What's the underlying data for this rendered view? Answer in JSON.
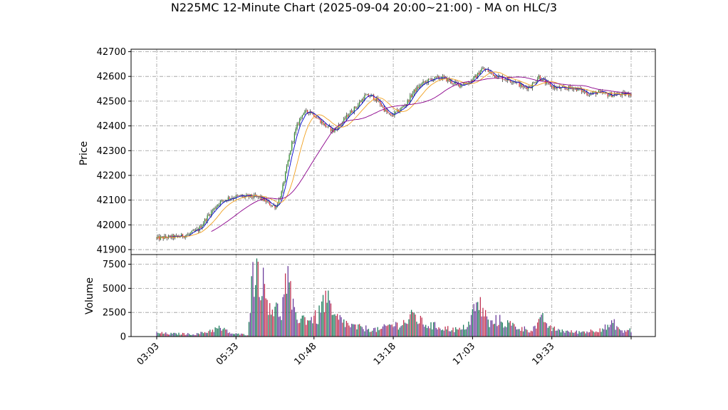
{
  "chart_data": {
    "type": "candlestick",
    "title": "N225MC 12-Minute Chart (2025-09-04 20:00~21:00) - MA on HLC/3",
    "price_panel": {
      "ylabel": "Price",
      "ylim": [
        41880,
        42710
      ],
      "yticks": [
        41900,
        42000,
        42100,
        42200,
        42300,
        42400,
        42500,
        42600,
        42700
      ],
      "grid": true,
      "up_color": "#2e8b2e",
      "down_color": "#e03030",
      "ma_colors": [
        "#0000cc",
        "#f0a020",
        "#8b008b"
      ],
      "price_path": [
        [
          0,
          41945
        ],
        [
          8,
          41950
        ],
        [
          16,
          41952
        ],
        [
          24,
          41960
        ],
        [
          32,
          41980
        ],
        [
          40,
          42040
        ],
        [
          48,
          42090
        ],
        [
          56,
          42110
        ],
        [
          64,
          42115
        ],
        [
          72,
          42115
        ],
        [
          80,
          42110
        ],
        [
          84,
          42095
        ],
        [
          88,
          42080
        ],
        [
          92,
          42075
        ],
        [
          96,
          42130
        ],
        [
          100,
          42230
        ],
        [
          104,
          42330
        ],
        [
          108,
          42400
        ],
        [
          112,
          42450
        ],
        [
          118,
          42460
        ],
        [
          124,
          42430
        ],
        [
          130,
          42400
        ],
        [
          136,
          42380
        ],
        [
          142,
          42410
        ],
        [
          148,
          42450
        ],
        [
          154,
          42480
        ],
        [
          160,
          42520
        ],
        [
          166,
          42520
        ],
        [
          172,
          42490
        ],
        [
          176,
          42460
        ],
        [
          180,
          42440
        ],
        [
          186,
          42460
        ],
        [
          192,
          42490
        ],
        [
          198,
          42540
        ],
        [
          204,
          42570
        ],
        [
          212,
          42590
        ],
        [
          220,
          42595
        ],
        [
          226,
          42580
        ],
        [
          232,
          42565
        ],
        [
          240,
          42575
        ],
        [
          246,
          42600
        ],
        [
          250,
          42630
        ],
        [
          254,
          42625
        ],
        [
          260,
          42605
        ],
        [
          268,
          42590
        ],
        [
          276,
          42580
        ],
        [
          282,
          42555
        ],
        [
          288,
          42560
        ],
        [
          294,
          42600
        ],
        [
          300,
          42570
        ],
        [
          306,
          42555
        ],
        [
          312,
          42550
        ],
        [
          320,
          42555
        ],
        [
          326,
          42545
        ],
        [
          332,
          42530
        ],
        [
          340,
          42535
        ],
        [
          348,
          42525
        ],
        [
          358,
          42528
        ],
        [
          365,
          42530
        ]
      ]
    },
    "volume_panel": {
      "ylabel": "Volume",
      "ylim": [
        0,
        8500
      ],
      "yticks": [
        0,
        2500,
        5000,
        7500
      ],
      "grid": true,
      "bar_colors": [
        "#1a7a5a",
        "#c03050",
        "#6a3a9a"
      ],
      "volume_path": [
        [
          0,
          400
        ],
        [
          10,
          300
        ],
        [
          20,
          300
        ],
        [
          30,
          250
        ],
        [
          38,
          500
        ],
        [
          42,
          700
        ],
        [
          48,
          900
        ],
        [
          54,
          600
        ],
        [
          58,
          300
        ],
        [
          64,
          250
        ],
        [
          70,
          200
        ],
        [
          72,
          4200
        ],
        [
          76,
          8000
        ],
        [
          80,
          6500
        ],
        [
          84,
          4500
        ],
        [
          90,
          3000
        ],
        [
          96,
          2600
        ],
        [
          100,
          6300
        ],
        [
          106,
          2300
        ],
        [
          112,
          2000
        ],
        [
          118,
          1900
        ],
        [
          124,
          2100
        ],
        [
          130,
          4300
        ],
        [
          136,
          2000
        ],
        [
          142,
          1800
        ],
        [
          148,
          1200
        ],
        [
          154,
          1000
        ],
        [
          160,
          900
        ],
        [
          166,
          800
        ],
        [
          172,
          700
        ],
        [
          178,
          1200
        ],
        [
          186,
          1300
        ],
        [
          192,
          1600
        ],
        [
          198,
          2300
        ],
        [
          204,
          1500
        ],
        [
          210,
          1200
        ],
        [
          216,
          1100
        ],
        [
          222,
          900
        ],
        [
          228,
          800
        ],
        [
          234,
          700
        ],
        [
          240,
          1400
        ],
        [
          244,
          2800
        ],
        [
          248,
          3500
        ],
        [
          252,
          2600
        ],
        [
          256,
          1300
        ],
        [
          262,
          1800
        ],
        [
          268,
          1500
        ],
        [
          274,
          1200
        ],
        [
          280,
          900
        ],
        [
          288,
          700
        ],
        [
          294,
          1400
        ],
        [
          298,
          2000
        ],
        [
          302,
          900
        ],
        [
          310,
          700
        ],
        [
          318,
          500
        ],
        [
          326,
          500
        ],
        [
          334,
          600
        ],
        [
          340,
          800
        ],
        [
          346,
          1000
        ],
        [
          352,
          1400
        ],
        [
          358,
          500
        ],
        [
          362,
          700
        ]
      ]
    },
    "x_ticks": [
      {
        "label": "03:03",
        "index": 0
      },
      {
        "label": "05:33",
        "index": 61
      },
      {
        "label": "10:48",
        "index": 121
      },
      {
        "label": "13:18",
        "index": 182
      },
      {
        "label": "17:03",
        "index": 243
      },
      {
        "label": "19:33",
        "index": 304
      },
      {
        "label": "",
        "index": 365
      }
    ],
    "n_bars": 366
  }
}
